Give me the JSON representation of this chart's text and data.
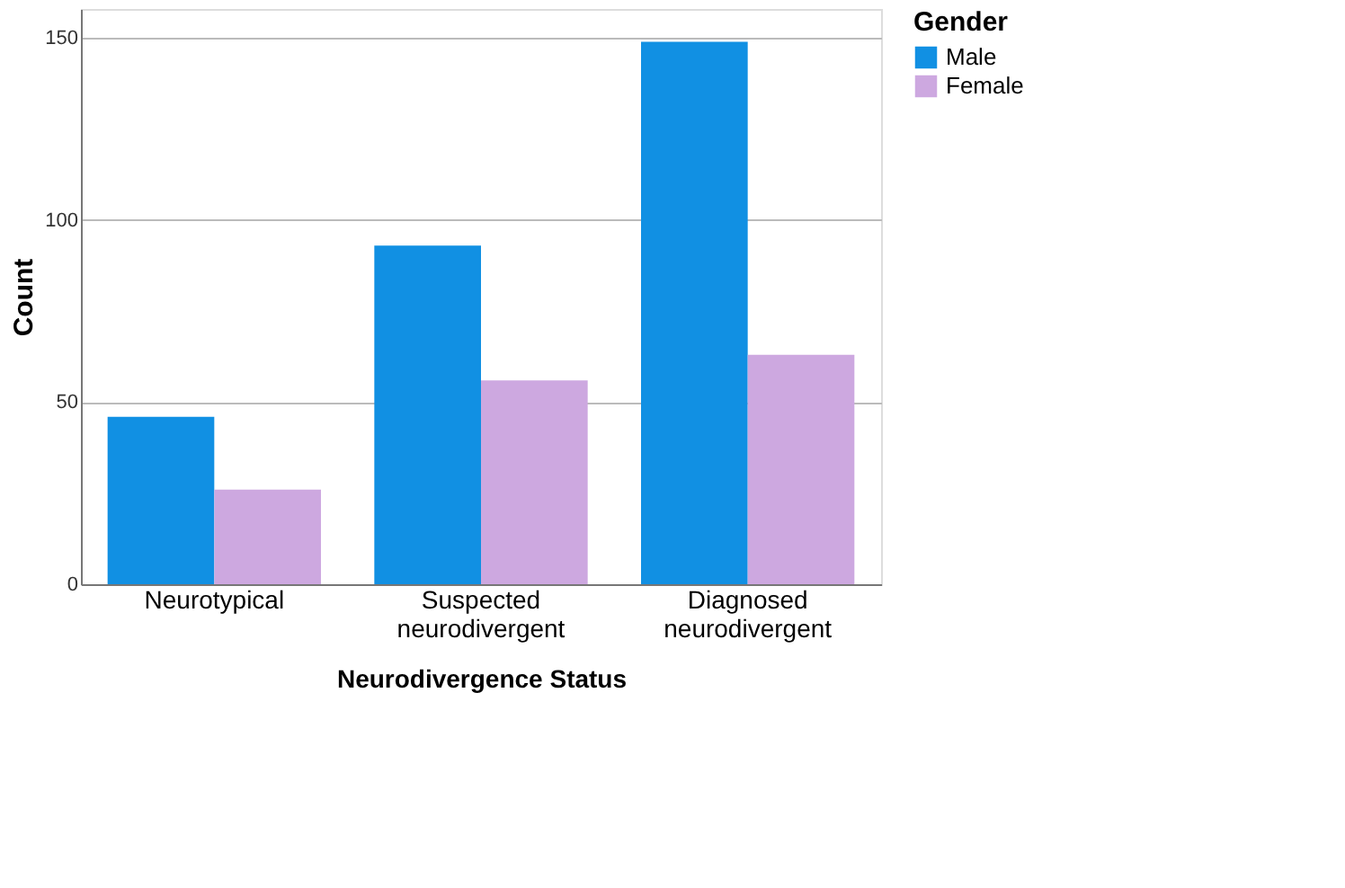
{
  "chart_data": {
    "type": "bar",
    "xlabel": "Neurodivergence Status",
    "ylabel": "Count",
    "legend_title": "Gender",
    "categories": [
      "Neurotypical",
      "Suspected neurodivergent",
      "Diagnosed neurodivergent"
    ],
    "series": [
      {
        "name": "Male",
        "color": "#1190e3",
        "values": [
          46,
          93,
          149
        ]
      },
      {
        "name": "Female",
        "color": "#cda8e0",
        "values": [
          26,
          56,
          63
        ]
      }
    ],
    "ylim": [
      0,
      158
    ],
    "yticks": [
      0,
      50,
      100,
      150
    ],
    "grid": "y",
    "legend": "top right"
  }
}
